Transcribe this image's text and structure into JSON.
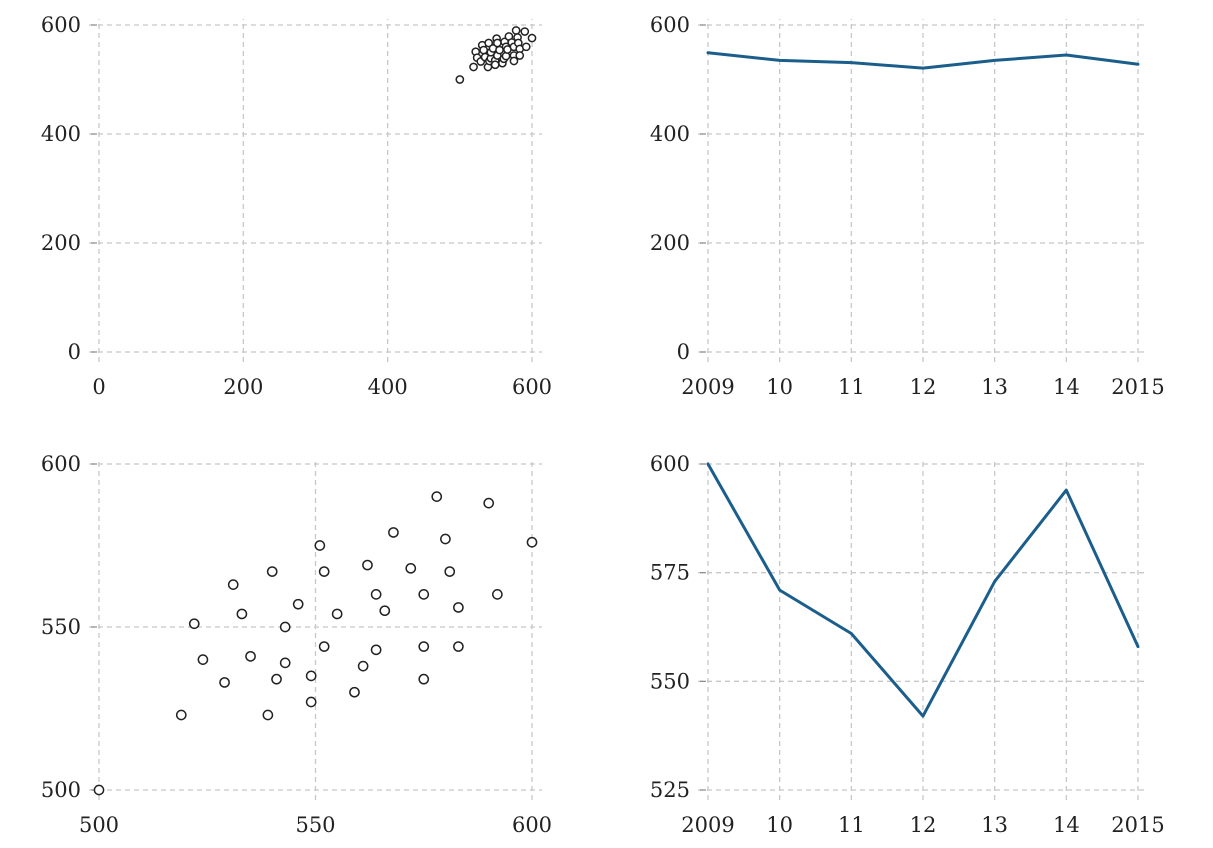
{
  "colors": {
    "line": "#1b5e8c",
    "grid": "#c8c8c8",
    "marker_edge": "#222222"
  },
  "chart_data": [
    {
      "type": "scatter",
      "xlim": [
        0,
        600
      ],
      "ylim": [
        0,
        600
      ],
      "xticks": [
        "0",
        "200",
        "400",
        "600"
      ],
      "yticks": [
        "0",
        "200",
        "400",
        "600"
      ],
      "grid": true,
      "marker": "open-circle",
      "points": [
        [
          500,
          500
        ],
        [
          519,
          523
        ],
        [
          522,
          551
        ],
        [
          524,
          540
        ],
        [
          529,
          533
        ],
        [
          531,
          563
        ],
        [
          533,
          554
        ],
        [
          535,
          541
        ],
        [
          539,
          523
        ],
        [
          540,
          567
        ],
        [
          541,
          534
        ],
        [
          543,
          539
        ],
        [
          543,
          550
        ],
        [
          546,
          557
        ],
        [
          549,
          535
        ],
        [
          549,
          527
        ],
        [
          551,
          575
        ],
        [
          552,
          567
        ],
        [
          552,
          544
        ],
        [
          555,
          554
        ],
        [
          559,
          530
        ],
        [
          561,
          538
        ],
        [
          562,
          569
        ],
        [
          564,
          560
        ],
        [
          564,
          543
        ],
        [
          566,
          555
        ],
        [
          568,
          579
        ],
        [
          572,
          568
        ],
        [
          575,
          544
        ],
        [
          575,
          534
        ],
        [
          575,
          560
        ],
        [
          578,
          590
        ],
        [
          580,
          577
        ],
        [
          581,
          567
        ],
        [
          583,
          556
        ],
        [
          583,
          544
        ],
        [
          590,
          588
        ],
        [
          592,
          560
        ],
        [
          600,
          576
        ]
      ]
    },
    {
      "type": "line",
      "categories": [
        "2009",
        "10",
        "11",
        "12",
        "13",
        "14",
        "2015"
      ],
      "values": [
        549,
        535,
        531,
        521,
        535,
        545,
        528
      ],
      "ylim": [
        0,
        600
      ],
      "yticks": [
        "0",
        "200",
        "400",
        "600"
      ],
      "grid": true
    },
    {
      "type": "scatter",
      "xlim": [
        500,
        600
      ],
      "ylim": [
        500,
        600
      ],
      "xticks": [
        "500",
        "550",
        "600"
      ],
      "yticks": [
        "500",
        "550",
        "600"
      ],
      "grid": true,
      "marker": "open-circle",
      "points": [
        [
          500,
          500
        ],
        [
          519,
          523
        ],
        [
          522,
          551
        ],
        [
          524,
          540
        ],
        [
          529,
          533
        ],
        [
          531,
          563
        ],
        [
          533,
          554
        ],
        [
          535,
          541
        ],
        [
          539,
          523
        ],
        [
          540,
          567
        ],
        [
          541,
          534
        ],
        [
          543,
          539
        ],
        [
          543,
          550
        ],
        [
          546,
          557
        ],
        [
          549,
          535
        ],
        [
          549,
          527
        ],
        [
          551,
          575
        ],
        [
          552,
          567
        ],
        [
          552,
          544
        ],
        [
          555,
          554
        ],
        [
          559,
          530
        ],
        [
          561,
          538
        ],
        [
          562,
          569
        ],
        [
          564,
          560
        ],
        [
          564,
          543
        ],
        [
          566,
          555
        ],
        [
          568,
          579
        ],
        [
          572,
          568
        ],
        [
          575,
          544
        ],
        [
          575,
          534
        ],
        [
          575,
          560
        ],
        [
          578,
          590
        ],
        [
          580,
          577
        ],
        [
          581,
          567
        ],
        [
          583,
          556
        ],
        [
          583,
          544
        ],
        [
          590,
          588
        ],
        [
          592,
          560
        ],
        [
          600,
          576
        ]
      ]
    },
    {
      "type": "line",
      "categories": [
        "2009",
        "10",
        "11",
        "12",
        "13",
        "14",
        "2015"
      ],
      "values": [
        600,
        571,
        561,
        542,
        573,
        594,
        558
      ],
      "ylim": [
        525,
        600
      ],
      "yticks": [
        "525",
        "550",
        "575",
        "600"
      ],
      "grid": true
    }
  ]
}
